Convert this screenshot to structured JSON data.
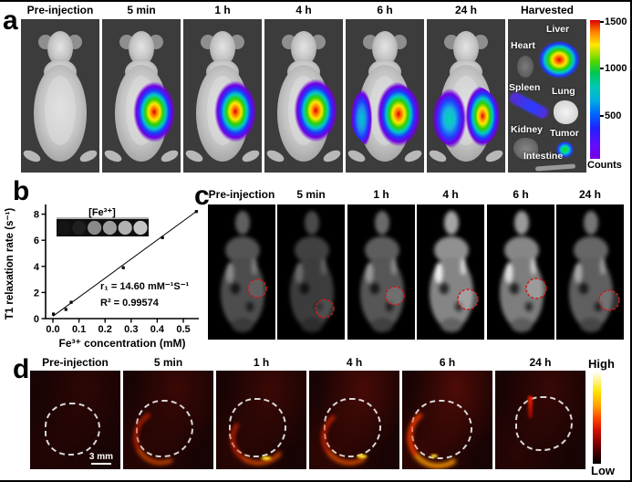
{
  "panel_a": {
    "label": "a",
    "timepoints": [
      "Pre-injection",
      "5 min",
      "1 h",
      "4 h",
      "6 h",
      "24 h"
    ],
    "harvested": {
      "title": "Harvested",
      "organs": [
        "Heart",
        "Liver",
        "Spleen",
        "Lung",
        "Kidney",
        "Tumor",
        "Intestine"
      ]
    },
    "colorbar": {
      "ticks": [
        "1500",
        "1000",
        "500"
      ],
      "label": "Counts"
    }
  },
  "panel_b": {
    "label": "b"
  },
  "panel_c": {
    "label": "c",
    "timepoints": [
      "Pre-injection",
      "5 min",
      "1 h",
      "4 h",
      "6 h",
      "24 h"
    ]
  },
  "panel_d": {
    "label": "d",
    "timepoints": [
      "Pre-injection",
      "5 min",
      "1 h",
      "4 h",
      "6 h",
      "24 h"
    ],
    "scale_bar": "3 mm",
    "colorbar": {
      "high": "High",
      "low": "Low"
    }
  },
  "chart_data": {
    "type": "scatter",
    "x": [
      0.002,
      0.05,
      0.07,
      0.27,
      0.42,
      0.55
    ],
    "y": [
      0.35,
      0.7,
      1.25,
      3.9,
      6.2,
      8.2
    ],
    "fit": {
      "slope": 14.6,
      "intercept": 0.18,
      "x_end": 0.556
    },
    "xlabel": "Fe³⁺ concentration (mM)",
    "ylabel": "T1 relaxation rate (s⁻¹)",
    "xticks": [
      0.0,
      0.1,
      0.2,
      0.3,
      0.4,
      0.5
    ],
    "yticks": [
      0,
      2,
      4,
      6,
      8
    ],
    "xlim": [
      0,
      0.57
    ],
    "ylim": [
      0,
      8.7
    ],
    "annotation_r1": "r₁ = 14.60 mM⁻¹S⁻¹",
    "annotation_r2": "R² = 0.99574",
    "inset_label": "[Fe³⁺]",
    "inset_samples": 6,
    "legend": "none",
    "grid": false
  }
}
